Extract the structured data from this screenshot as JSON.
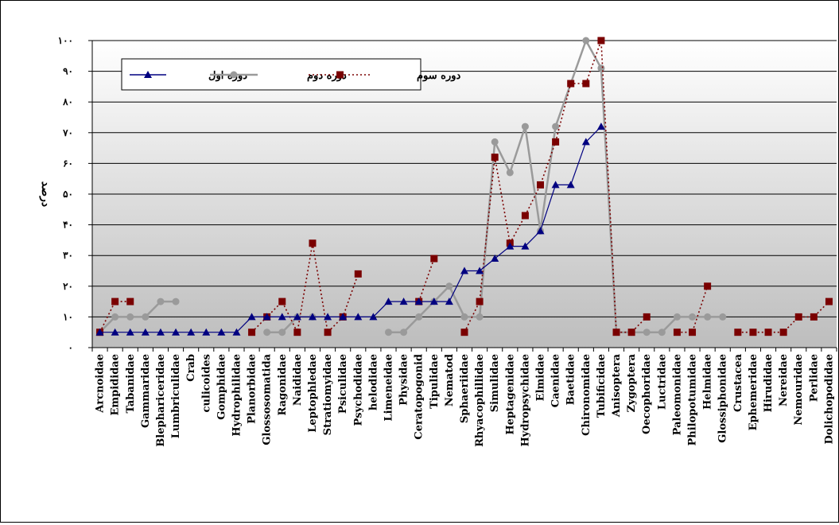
{
  "chart_data": {
    "type": "line",
    "title": "",
    "xlabel": "",
    "ylabel": "درصد",
    "ylim": [
      0,
      100
    ],
    "yticks": [
      {
        "value": 0,
        "label": "۰"
      },
      {
        "value": 10,
        "label": "۱۰"
      },
      {
        "value": 20,
        "label": "۲۰"
      },
      {
        "value": 30,
        "label": "۳۰"
      },
      {
        "value": 40,
        "label": "۴۰"
      },
      {
        "value": 50,
        "label": "۵۰"
      },
      {
        "value": 60,
        "label": "۶۰"
      },
      {
        "value": 70,
        "label": "۷۰"
      },
      {
        "value": 80,
        "label": "۸۰"
      },
      {
        "value": 90,
        "label": "۹۰"
      },
      {
        "value": 100,
        "label": "۱۰۰"
      }
    ],
    "grid": true,
    "legend_position": "top-left",
    "categories": [
      "Arcnoidae",
      "Empididae",
      "Tabanidae",
      "Gammaridae",
      "Blephariceridae",
      "Lumbriculidae",
      "Crab",
      "culicoides",
      "Gomphidae",
      "Hydrophilidae",
      "Planorbidae",
      "Glossosomatida",
      "Ragonidae",
      "Naididae",
      "Leptophledae",
      "Stratiomyidae",
      "Psiculidae",
      "Psychodidae",
      "helodidae",
      "Limeneidae",
      "Physidae",
      "Ceratopogonid",
      "Tipulidae",
      "Nematod",
      "Sphaeriidae",
      "Rhyacophillidae",
      "Simulidae",
      "Heptagenidae",
      "Hydropsychidae",
      "Elmidae",
      "Caenidae",
      "Baetidae",
      "Chironomidae",
      "Tubificidae",
      "Anisoptera",
      "Zygoptera",
      "Oecophoridae",
      "Luctridae",
      "Paleomonidae",
      "Philopotumidae",
      "Helmidae",
      "Glossiphonidae",
      "Crustacea",
      "Ephemeridae",
      "Hirudidae",
      "Nereidae",
      "Nemouridae",
      "Perlidae",
      "Dolichopodidae"
    ],
    "series": [
      {
        "name": "دوره اول",
        "color": "#000080",
        "style": "solid",
        "marker": "triangle",
        "values": [
          5,
          5,
          5,
          5,
          5,
          5,
          5,
          5,
          5,
          5,
          10,
          10,
          10,
          10,
          10,
          10,
          10,
          10,
          10,
          15,
          15,
          15,
          15,
          15,
          25,
          25,
          29,
          33,
          33,
          38,
          53,
          53,
          67,
          72,
          null,
          null,
          null,
          null,
          null,
          null,
          null,
          null,
          null,
          null,
          null,
          null,
          null,
          null,
          null
        ]
      },
      {
        "name": "دوره دوم",
        "color": "#9a9a9a",
        "style": "solid",
        "marker": "circle",
        "values": [
          5,
          10,
          10,
          10,
          15,
          15,
          null,
          null,
          null,
          null,
          null,
          5,
          5,
          10,
          10,
          null,
          null,
          null,
          null,
          5,
          5,
          10,
          15,
          20,
          10,
          10,
          67,
          57,
          72,
          38,
          72,
          86,
          100,
          91,
          5,
          5,
          5,
          5,
          10,
          10,
          10,
          10,
          null,
          null,
          null,
          null,
          null,
          null,
          null
        ]
      },
      {
        "name": "دوره سوم",
        "color": "#7a0000",
        "style": "dotted",
        "marker": "square",
        "values": [
          5,
          15,
          15,
          null,
          null,
          null,
          null,
          null,
          null,
          null,
          5,
          10,
          15,
          5,
          34,
          5,
          10,
          24,
          null,
          null,
          null,
          15,
          29,
          null,
          5,
          15,
          62,
          34,
          43,
          53,
          67,
          86,
          86,
          100,
          5,
          5,
          10,
          null,
          5,
          5,
          20,
          null,
          5,
          5,
          5,
          5,
          10,
          10,
          15
        ]
      }
    ]
  }
}
